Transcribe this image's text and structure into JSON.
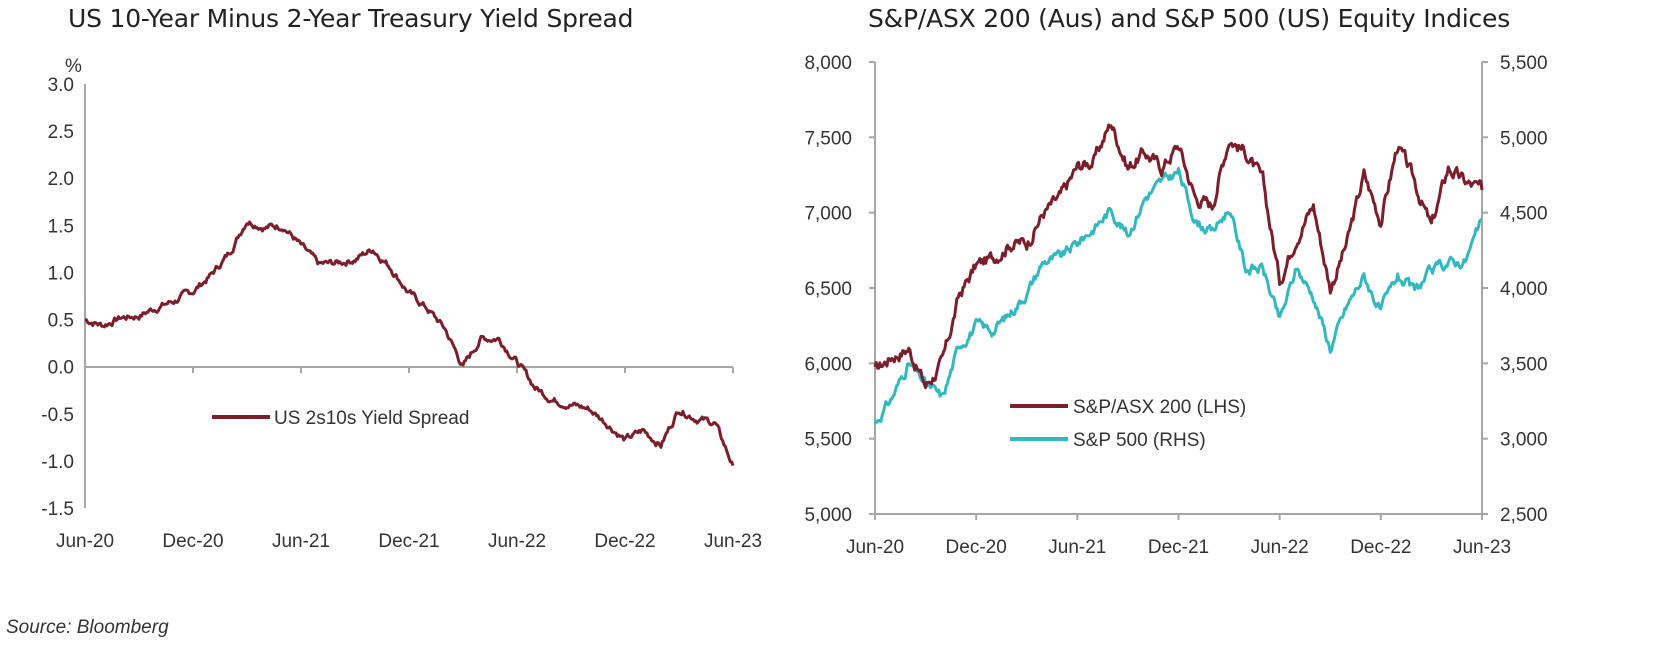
{
  "colors": {
    "maroon": "#7a1f2b",
    "teal": "#33b8c0",
    "axis": "#a6a6a6"
  },
  "source": "Source: Bloomberg",
  "chart_data": [
    {
      "type": "line",
      "title": "US 10-Year Minus 2-Year Treasury Yield Spread",
      "ylabel": "%",
      "ylim": [
        -1.5,
        3.0
      ],
      "yticks": [
        "3.0",
        "2.5",
        "2.0",
        "1.5",
        "1.0",
        "0.5",
        "0.0",
        "-0.5",
        "-1.0",
        "-1.5"
      ],
      "xticks": [
        "Jun-20",
        "Dec-20",
        "Jun-21",
        "Dec-21",
        "Jun-22",
        "Dec-22",
        "Jun-23"
      ],
      "legend_position": "middle-right",
      "series": [
        {
          "name": "US 2s10s Yield Spread",
          "color": "#7a1f2b",
          "x": [
            "2020-06",
            "2020-07",
            "2020-08",
            "2020-09",
            "2020-10",
            "2020-11",
            "2020-12",
            "2021-01",
            "2021-02",
            "2021-03",
            "2021-04",
            "2021-05",
            "2021-06",
            "2021-07",
            "2021-08",
            "2021-09",
            "2021-10",
            "2021-11",
            "2021-12",
            "2022-01",
            "2022-02",
            "2022-03",
            "2022-04",
            "2022-05",
            "2022-06",
            "2022-07",
            "2022-08",
            "2022-09",
            "2022-10",
            "2022-11",
            "2022-12",
            "2023-01",
            "2023-02",
            "2023-03",
            "2023-04",
            "2023-05",
            "2023-06"
          ],
          "y": [
            0.5,
            0.44,
            0.52,
            0.54,
            0.63,
            0.7,
            0.8,
            0.97,
            1.2,
            1.56,
            1.48,
            1.5,
            1.28,
            1.08,
            1.1,
            1.14,
            1.25,
            1.05,
            0.78,
            0.62,
            0.4,
            0.0,
            0.3,
            0.3,
            0.05,
            -0.22,
            -0.35,
            -0.4,
            -0.45,
            -0.6,
            -0.78,
            -0.68,
            -0.83,
            -0.45,
            -0.55,
            -0.6,
            -1.05
          ]
        }
      ]
    },
    {
      "type": "line",
      "title": "S&P/ASX 200 (Aus) and S&P 500 (US) Equity Indices",
      "ylim_left": [
        5000,
        8000
      ],
      "ylim_right": [
        2500,
        5500
      ],
      "yticks_left": [
        "8,000",
        "7,500",
        "7,000",
        "6,500",
        "6,000",
        "5,500",
        "5,000"
      ],
      "yticks_right": [
        "5,500",
        "5,000",
        "4,500",
        "4,000",
        "3,500",
        "3,000",
        "2,500"
      ],
      "xticks": [
        "Jun-20",
        "Dec-20",
        "Jun-21",
        "Dec-21",
        "Jun-22",
        "Dec-22",
        "Jun-23"
      ],
      "legend_position": "bottom-center",
      "series": [
        {
          "name": "S&P/ASX 200 (LHS)",
          "axis": "left",
          "color": "#7a1f2b",
          "x": [
            "2020-06",
            "2020-07",
            "2020-08",
            "2020-09",
            "2020-10",
            "2020-11",
            "2020-12",
            "2021-01",
            "2021-02",
            "2021-03",
            "2021-04",
            "2021-05",
            "2021-06",
            "2021-07",
            "2021-08",
            "2021-09",
            "2021-10",
            "2021-11",
            "2021-12",
            "2022-01",
            "2022-02",
            "2022-03",
            "2022-04",
            "2022-05",
            "2022-06",
            "2022-07",
            "2022-08",
            "2022-09",
            "2022-10",
            "2022-11",
            "2022-12",
            "2023-01",
            "2023-02",
            "2023-03",
            "2023-04",
            "2023-05",
            "2023-06"
          ],
          "y": [
            5950,
            6050,
            6100,
            5850,
            6000,
            6450,
            6650,
            6700,
            6800,
            6800,
            7000,
            7100,
            7300,
            7350,
            7600,
            7300,
            7400,
            7300,
            7450,
            7100,
            7050,
            7500,
            7400,
            7200,
            6550,
            6850,
            7050,
            6500,
            6800,
            7250,
            6950,
            7450,
            7200,
            6900,
            7300,
            7200,
            7150
          ]
        },
        {
          "name": "S&P 500 (RHS)",
          "axis": "right",
          "color": "#33b8c0",
          "x": [
            "2020-06",
            "2020-07",
            "2020-08",
            "2020-09",
            "2020-10",
            "2020-11",
            "2020-12",
            "2021-01",
            "2021-02",
            "2021-03",
            "2021-04",
            "2021-05",
            "2021-06",
            "2021-07",
            "2021-08",
            "2021-09",
            "2021-10",
            "2021-11",
            "2021-12",
            "2022-01",
            "2022-02",
            "2022-03",
            "2022-04",
            "2022-05",
            "2022-06",
            "2022-07",
            "2022-08",
            "2022-09",
            "2022-10",
            "2022-11",
            "2022-12",
            "2023-01",
            "2023-02",
            "2023-03",
            "2023-04",
            "2023-05",
            "2023-06"
          ],
          "y": [
            3100,
            3270,
            3500,
            3360,
            3270,
            3620,
            3750,
            3720,
            3830,
            3970,
            4180,
            4200,
            4300,
            4400,
            4520,
            4350,
            4600,
            4700,
            4770,
            4450,
            4370,
            4530,
            4130,
            4130,
            3780,
            4130,
            3950,
            3600,
            3880,
            4080,
            3840,
            4080,
            3970,
            4110,
            4170,
            4180,
            4450
          ]
        }
      ]
    }
  ]
}
